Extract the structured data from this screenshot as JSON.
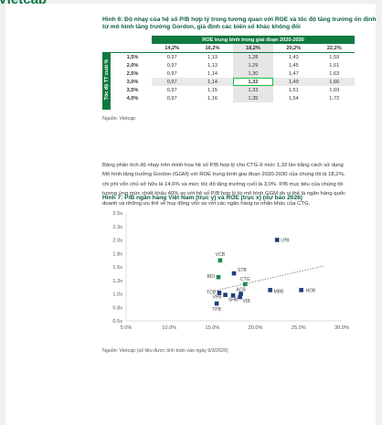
{
  "brand": {
    "logo": "Vietcap",
    "accent_color": "#0f7a3f",
    "highlight_color": "#1ac13a"
  },
  "figure6": {
    "title_line1": "Hình 6: Độ nhạy của hệ số P/B hợp lý trong tương quan với ROE và tốc độ tăng trưởng ổn định",
    "title_line2": "từ mô hình tăng trưởng Gordon, giả định các biến số khác không đổi",
    "roe_header": "ROE trung bình trong giai đoạn 2020-2030",
    "row_axis_label": "Tốc độ TT cuối %",
    "roe_values": [
      "14,2%",
      "16,2%",
      "18,2%",
      "20,2%",
      "22,2%"
    ],
    "rows": [
      {
        "g": "1,5%",
        "v": [
          "0,97",
          "1,13",
          "1,28",
          "1,43",
          "1,59"
        ]
      },
      {
        "g": "2,0%",
        "v": [
          "0,97",
          "1,13",
          "1,29",
          "1,45",
          "1,61"
        ]
      },
      {
        "g": "2,5%",
        "v": [
          "0,97",
          "1,14",
          "1,30",
          "1,47",
          "1,63"
        ]
      },
      {
        "g": "3,0%",
        "v": [
          "0,97",
          "1,14",
          "1,32",
          "1,49",
          "1,66"
        ]
      },
      {
        "g": "3,5%",
        "v": [
          "0,97",
          "1,15",
          "1,33",
          "1,51",
          "1,69"
        ]
      },
      {
        "g": "4,0%",
        "v": [
          "0,97",
          "1,16",
          "1,35",
          "1,54",
          "1,72"
        ]
      }
    ],
    "source": "Nguồn: Vietcap"
  },
  "paragraph": [
    "Bảng phân tích độ nhạy trên minh họa hệ số P/B hợp lý cho CTG ở mức 1,32 lần bằng cách sử dụng",
    "Mô hình tăng trưởng Gordon (GGM) với ROE trung bình giai đoạn 2020-2030 của chúng tôi là 18,2%,",
    "chi phí vốn chủ sở hữu là 14,6% và mức tốc độ tăng trưởng cuối là 3,0%. P/B mục tiêu của chúng tôi",
    "tương ứng mức chiết khấu 40% so với hệ số P/B hợp lý từ mô hình GGM do vị thế là ngân hàng quốc",
    "doanh và những ưu thế về huy động vốn so với các ngân hàng tư nhân khác của CTG."
  ],
  "figure7": {
    "title": "Hình 7: P/B ngân hàng Việt Nam (trục y) và ROE (trục x) (dự báo 2026)",
    "source": "Nguồn: Vietcap (số liệu được tính toán vào ngày 9/3/2026)"
  },
  "chart_data": {
    "type": "scatter",
    "title": "Hình 7: P/B ngân hàng Việt Nam (trục y) và ROE (trục x) (dự báo 2026)",
    "xlabel": "",
    "ylabel": "",
    "xlim": [
      0.05,
      0.3
    ],
    "ylim": [
      0.5,
      2.5
    ],
    "x_ticks": [
      "5.0%",
      "10.0%",
      "15.0%",
      "20.0%",
      "25.0%",
      "30.0%"
    ],
    "y_ticks": [
      "2.5x",
      "2.3x",
      "2.0x",
      "1.8x",
      "1.5x",
      "1.3x",
      "1.0x",
      "0.8x",
      "0.5x"
    ],
    "trendline": {
      "style": "dotted",
      "from": [
        0.15,
        1.05
      ],
      "to": [
        0.28,
        1.52
      ]
    },
    "points": [
      {
        "label": "LPB",
        "x": 0.225,
        "y": 2.0,
        "color": "#1f3f7a"
      },
      {
        "label": "VCB",
        "x": 0.159,
        "y": 1.62,
        "color": "#1f8a4f"
      },
      {
        "label": "STB",
        "x": 0.175,
        "y": 1.38,
        "color": "#1f3f7a"
      },
      {
        "label": "BID",
        "x": 0.157,
        "y": 1.31,
        "color": "#1f8a4f"
      },
      {
        "label": "CTG",
        "x": 0.188,
        "y": 1.18,
        "color": "#1f8a4f"
      },
      {
        "label": "MBB",
        "x": 0.217,
        "y": 1.07,
        "color": "#1f3f7a"
      },
      {
        "label": "HDB",
        "x": 0.253,
        "y": 1.07,
        "color": "#1f3f7a"
      },
      {
        "label": "TCB",
        "x": 0.158,
        "y": 1.02,
        "color": "#1f3f7a"
      },
      {
        "label": "ACB",
        "x": 0.183,
        "y": 1.0,
        "color": "#1f3f7a"
      },
      {
        "label": "VPB",
        "x": 0.165,
        "y": 0.98,
        "color": "#1f3f7a"
      },
      {
        "label": "SHB",
        "x": 0.174,
        "y": 0.97,
        "color": "#1f3f7a"
      },
      {
        "label": "VIB",
        "x": 0.182,
        "y": 0.94,
        "color": "#1f3f7a"
      },
      {
        "label": "TPB",
        "x": 0.155,
        "y": 0.82,
        "color": "#1f3f7a"
      }
    ]
  }
}
